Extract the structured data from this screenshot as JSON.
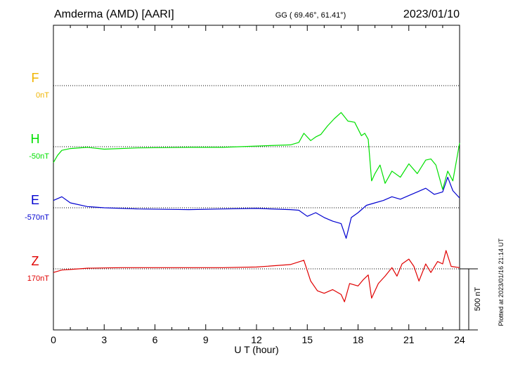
{
  "header": {
    "station": "Amderma (AMD)  [AARI]",
    "coords": "GG ( 69.46°,  61.41°)",
    "date": "2023/01/10"
  },
  "footer": {
    "plotted": "Plotted at 2023/01/16 21:14 UT"
  },
  "colors": {
    "F": "#f0b400",
    "H": "#00e000",
    "E": "#0000d0",
    "Z": "#e00000"
  },
  "chart_data": {
    "type": "line",
    "xlabel": "U T (hour)",
    "xlim": [
      0,
      24
    ],
    "xticks": [
      "0",
      "3",
      "6",
      "9",
      "12",
      "15",
      "18",
      "21",
      "24"
    ],
    "scale_bar": "500 nT",
    "grid": "dotted horizontal baselines",
    "series": [
      {
        "name": "F",
        "baseline": "0nT",
        "color": "#f0b400",
        "points": []
      },
      {
        "name": "H",
        "baseline": "-50nT",
        "color": "#00e000",
        "points": [
          [
            0,
            -130
          ],
          [
            0.25,
            -70
          ],
          [
            0.5,
            -30
          ],
          [
            1,
            -15
          ],
          [
            2,
            -5
          ],
          [
            3,
            -20
          ],
          [
            5,
            -10
          ],
          [
            8,
            -5
          ],
          [
            10,
            -5
          ],
          [
            12,
            5
          ],
          [
            14,
            15
          ],
          [
            14.5,
            35
          ],
          [
            14.8,
            110
          ],
          [
            15.2,
            50
          ],
          [
            15.5,
            80
          ],
          [
            15.8,
            100
          ],
          [
            16.2,
            170
          ],
          [
            16.6,
            230
          ],
          [
            17,
            280
          ],
          [
            17.4,
            210
          ],
          [
            17.8,
            200
          ],
          [
            18.2,
            90
          ],
          [
            18.4,
            110
          ],
          [
            18.6,
            60
          ],
          [
            18.8,
            -280
          ],
          [
            19,
            -220
          ],
          [
            19.3,
            -150
          ],
          [
            19.6,
            -300
          ],
          [
            20,
            -200
          ],
          [
            20.5,
            -250
          ],
          [
            21,
            -140
          ],
          [
            21.5,
            -220
          ],
          [
            22,
            -110
          ],
          [
            22.3,
            -100
          ],
          [
            22.6,
            -150
          ],
          [
            23,
            -350
          ],
          [
            23.3,
            -200
          ],
          [
            23.6,
            -280
          ],
          [
            24,
            30
          ]
        ]
      },
      {
        "name": "E",
        "baseline": "-570nT",
        "color": "#0000d0",
        "points": [
          [
            0,
            60
          ],
          [
            0.5,
            90
          ],
          [
            1,
            40
          ],
          [
            2,
            10
          ],
          [
            3,
            0
          ],
          [
            5,
            -10
          ],
          [
            8,
            -15
          ],
          [
            10,
            -10
          ],
          [
            12,
            -5
          ],
          [
            14,
            -15
          ],
          [
            14.5,
            -20
          ],
          [
            15,
            -70
          ],
          [
            15.5,
            -40
          ],
          [
            16,
            -80
          ],
          [
            16.5,
            -110
          ],
          [
            17,
            -130
          ],
          [
            17.3,
            -250
          ],
          [
            17.6,
            -80
          ],
          [
            18,
            -40
          ],
          [
            18.5,
            20
          ],
          [
            19,
            40
          ],
          [
            19.5,
            60
          ],
          [
            20,
            90
          ],
          [
            20.5,
            70
          ],
          [
            21,
            100
          ],
          [
            21.5,
            130
          ],
          [
            22,
            160
          ],
          [
            22.5,
            110
          ],
          [
            23,
            130
          ],
          [
            23.3,
            250
          ],
          [
            23.6,
            140
          ],
          [
            24,
            80
          ]
        ]
      },
      {
        "name": "Z",
        "baseline": "170nT",
        "color": "#e00000",
        "points": [
          [
            0,
            -30
          ],
          [
            0.5,
            -10
          ],
          [
            1,
            -5
          ],
          [
            2,
            5
          ],
          [
            4,
            10
          ],
          [
            8,
            10
          ],
          [
            10,
            10
          ],
          [
            12,
            15
          ],
          [
            14,
            35
          ],
          [
            14.8,
            70
          ],
          [
            15.2,
            -100
          ],
          [
            15.6,
            -180
          ],
          [
            16,
            -200
          ],
          [
            16.5,
            -170
          ],
          [
            17,
            -210
          ],
          [
            17.2,
            -270
          ],
          [
            17.5,
            -120
          ],
          [
            18,
            -140
          ],
          [
            18.3,
            -90
          ],
          [
            18.6,
            -50
          ],
          [
            18.8,
            -240
          ],
          [
            19.2,
            -120
          ],
          [
            19.6,
            -60
          ],
          [
            20,
            10
          ],
          [
            20.3,
            -60
          ],
          [
            20.6,
            40
          ],
          [
            21,
            80
          ],
          [
            21.3,
            20
          ],
          [
            21.6,
            -100
          ],
          [
            22,
            40
          ],
          [
            22.3,
            -30
          ],
          [
            22.7,
            60
          ],
          [
            23,
            40
          ],
          [
            23.2,
            150
          ],
          [
            23.5,
            20
          ],
          [
            24,
            10
          ]
        ]
      }
    ]
  }
}
